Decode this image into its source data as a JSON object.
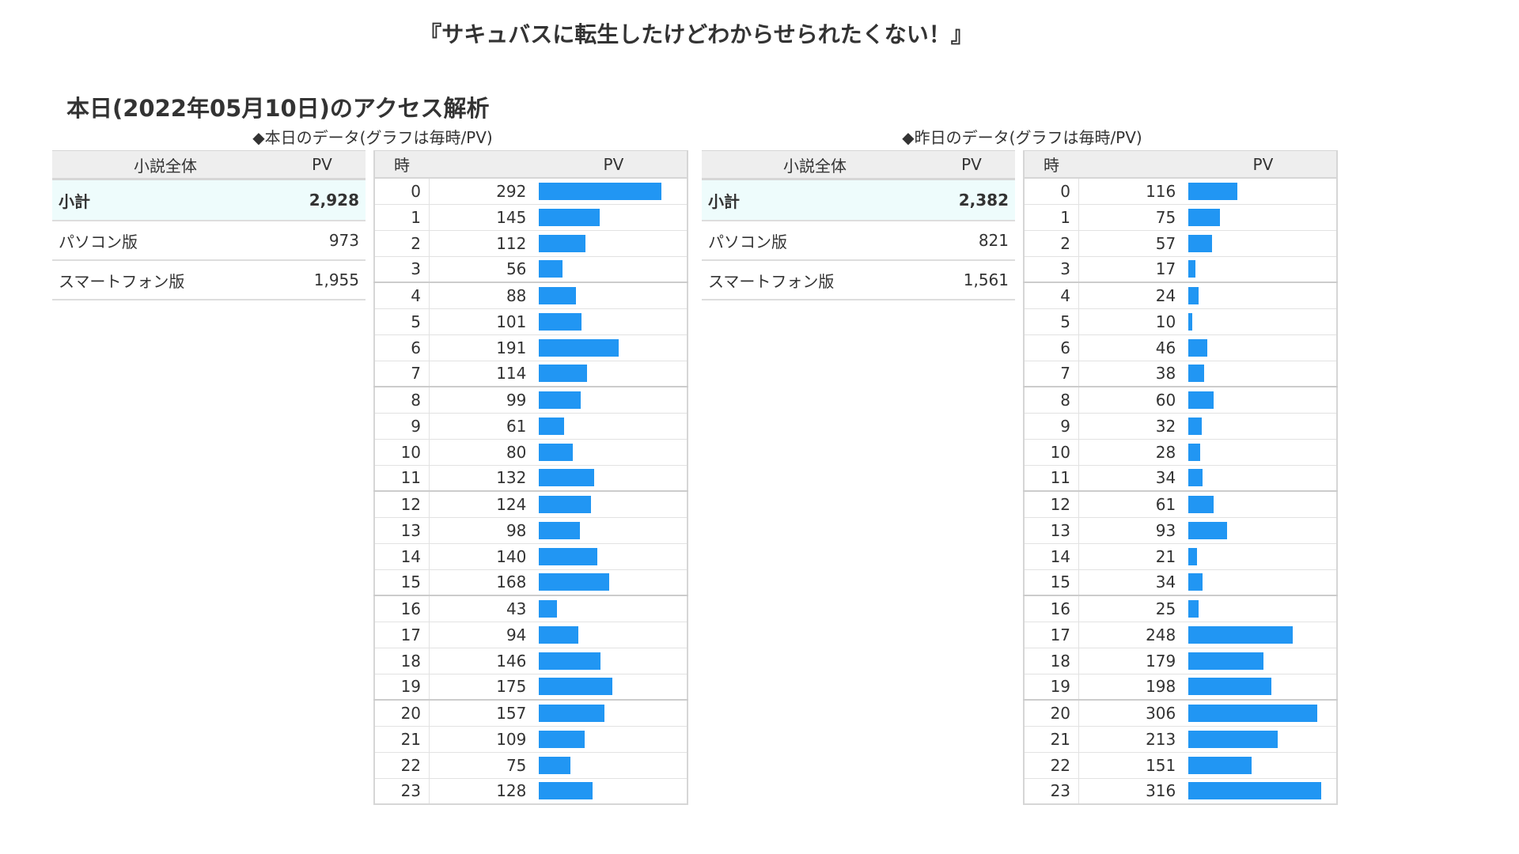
{
  "novel_title": "『サキュバスに転生したけどわからせられたくない！』",
  "page_title": "本日(2022年05月10日)のアクセス解析",
  "colors": {
    "bar": "#2196f3",
    "subtotal_bg": "#eefcfc",
    "header_bg": "#eeeeee"
  },
  "panels": [
    {
      "heading": "◆本日のデータ(グラフは毎時/PV)",
      "summary": {
        "col_label": "小説全体",
        "col_pv": "PV",
        "rows": [
          {
            "label": "小計",
            "value": "2,928"
          },
          {
            "label": "パソコン版",
            "value": "973"
          },
          {
            "label": "スマートフォン版",
            "value": "1,955"
          }
        ]
      },
      "hourly": {
        "col_hour": "時",
        "col_pv": "PV",
        "hours": [
          "0",
          "1",
          "2",
          "3",
          "4",
          "5",
          "6",
          "7",
          "8",
          "9",
          "10",
          "11",
          "12",
          "13",
          "14",
          "15",
          "16",
          "17",
          "18",
          "19",
          "20",
          "21",
          "22",
          "23"
        ],
        "pv": [
          292,
          145,
          112,
          56,
          88,
          101,
          191,
          114,
          99,
          61,
          80,
          132,
          124,
          98,
          140,
          168,
          43,
          94,
          146,
          175,
          157,
          109,
          75,
          128
        ]
      }
    },
    {
      "heading": "◆昨日のデータ(グラフは毎時/PV)",
      "summary": {
        "col_label": "小説全体",
        "col_pv": "PV",
        "rows": [
          {
            "label": "小計",
            "value": "2,382"
          },
          {
            "label": "パソコン版",
            "value": "821"
          },
          {
            "label": "スマートフォン版",
            "value": "1,561"
          }
        ]
      },
      "hourly": {
        "col_hour": "時",
        "col_pv": "PV",
        "hours": [
          "0",
          "1",
          "2",
          "3",
          "4",
          "5",
          "6",
          "7",
          "8",
          "9",
          "10",
          "11",
          "12",
          "13",
          "14",
          "15",
          "16",
          "17",
          "18",
          "19",
          "20",
          "21",
          "22",
          "23"
        ],
        "pv": [
          116,
          75,
          57,
          17,
          24,
          10,
          46,
          38,
          60,
          32,
          28,
          34,
          61,
          93,
          21,
          34,
          25,
          248,
          179,
          198,
          306,
          213,
          151,
          316
        ]
      }
    }
  ]
}
